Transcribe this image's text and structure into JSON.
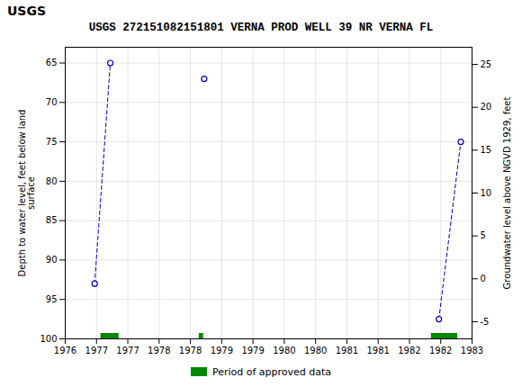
{
  "chart_data": {
    "type": "line",
    "title": "USGS 272151082151801 VERNA PROD WELL 39 NR VERNA FL",
    "annotations": [
      "USGS"
    ],
    "ylabel": "Depth to water level, feet below land\nsurface",
    "y2label": "Groundwater level above NGVD 1929, feet",
    "series": [
      {
        "x": [
          1976.97,
          1977.22
        ],
        "values": [
          93.0,
          65.0
        ],
        "color": "#0000bb",
        "marker": "circle",
        "line_style": "dashed"
      },
      {
        "x": [
          1978.72
        ],
        "values": [
          67.0
        ],
        "color": "#0000bb",
        "marker": "circle",
        "line_style": "dashed"
      },
      {
        "x": [
          1982.47,
          1982.82
        ],
        "values": [
          97.5,
          75.0
        ],
        "color": "#0000bb",
        "marker": "circle",
        "line_style": "dashed"
      },
      {
        "name": "Period of approved data",
        "type": "range",
        "color": "#008800",
        "x_start": [
          1977.07,
          1978.64,
          1982.35
        ],
        "x_end": [
          1977.36,
          1978.71,
          1982.77
        ],
        "values": [
          99.6,
          99.6,
          99.6
        ]
      }
    ],
    "xlim": [
      1976.5,
      1983.0
    ],
    "xticks": [
      {
        "value": 1976.5,
        "label": "1976"
      },
      1977,
      {
        "value": 1977.5,
        "label": "1977"
      },
      1978,
      {
        "value": 1978.5,
        "label": "1978"
      },
      1979,
      {
        "value": 1979.5,
        "label": "1979"
      },
      1980,
      {
        "value": 1980.5,
        "label": "1980"
      },
      1981,
      {
        "value": 1981.5,
        "label": "1981"
      },
      1982,
      {
        "value": 1982.5,
        "label": "1982"
      },
      1983
    ],
    "ylim": [
      100,
      63
    ],
    "yticks": [
      65,
      70,
      75,
      80,
      85,
      90,
      95,
      100
    ],
    "y2lim": [
      -7,
      27
    ],
    "y2ticks": [
      -5,
      0,
      5,
      10,
      15,
      20,
      25
    ],
    "grid": true,
    "legend": "bottom"
  }
}
